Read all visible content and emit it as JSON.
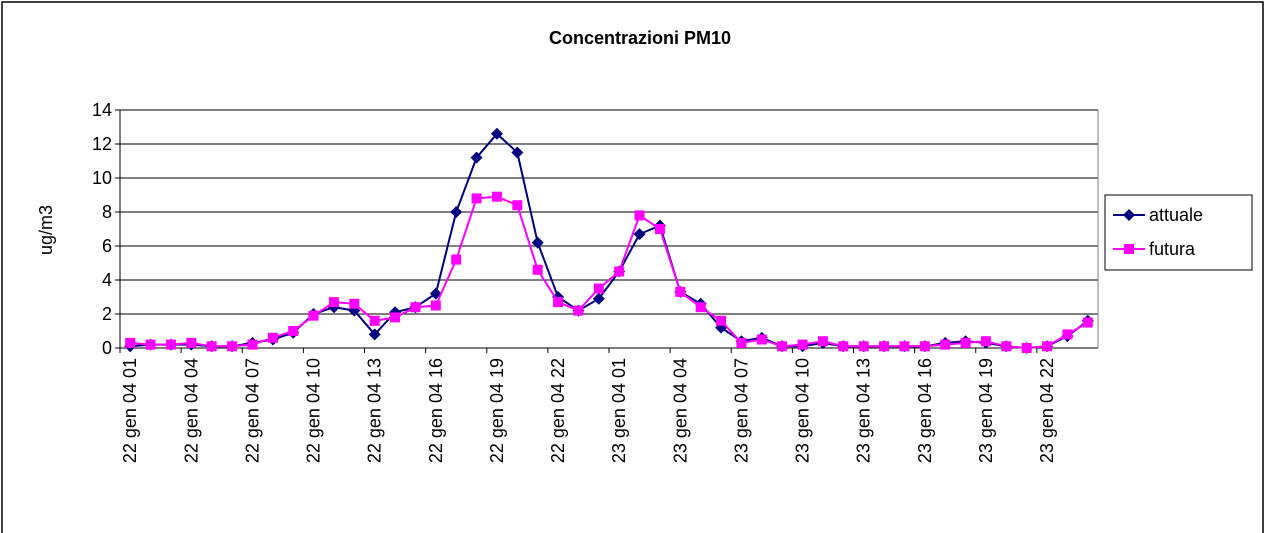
{
  "chart_data": {
    "type": "line",
    "title": "Concentrazioni PM10",
    "y_label": "ug/m3",
    "categories": [
      "22 gen 04 01",
      null,
      null,
      "22 gen 04 04",
      null,
      null,
      "22 gen 04 07",
      null,
      null,
      "22 gen 04 10",
      null,
      null,
      "22 gen 04 13",
      null,
      null,
      "22 gen 04 16",
      null,
      null,
      "22 gen 04 19",
      null,
      null,
      "22 gen 04 22",
      null,
      null,
      "23 gen 04 01",
      null,
      null,
      "23 gen 04 04",
      null,
      null,
      "23 gen 04 07",
      null,
      null,
      "23 gen 04 10",
      null,
      null,
      "23 gen 04 13",
      null,
      null,
      "23 gen 04 16",
      null,
      null,
      "23 gen 04 19",
      null,
      null,
      "23 gen 04 22",
      null,
      null
    ],
    "series": [
      {
        "name": "attuale",
        "color": "#000080",
        "marker": "diamond",
        "values": [
          0.1,
          0.2,
          0.2,
          0.2,
          0.1,
          0.1,
          0.3,
          0.5,
          0.9,
          2.0,
          2.4,
          2.2,
          0.8,
          2.1,
          2.4,
          3.2,
          8.0,
          11.2,
          12.6,
          11.5,
          6.2,
          3.0,
          2.2,
          2.9,
          4.5,
          6.7,
          7.2,
          3.3,
          2.6,
          1.2,
          0.4,
          0.6,
          0.1,
          0.1,
          0.3,
          0.1,
          0.1,
          0.1,
          0.1,
          0.1,
          0.3,
          0.4,
          0.3,
          0.1,
          0.0,
          0.1,
          0.7,
          1.6
        ]
      },
      {
        "name": "futura",
        "color": "#ff00ff",
        "marker": "square",
        "values": [
          0.3,
          0.2,
          0.2,
          0.3,
          0.1,
          0.1,
          0.2,
          0.6,
          1.0,
          1.9,
          2.7,
          2.6,
          1.6,
          1.8,
          2.4,
          2.5,
          5.2,
          8.8,
          8.9,
          8.4,
          4.6,
          2.7,
          2.2,
          3.5,
          4.5,
          7.8,
          7.0,
          3.3,
          2.4,
          1.6,
          0.3,
          0.5,
          0.1,
          0.2,
          0.4,
          0.1,
          0.1,
          0.1,
          0.1,
          0.1,
          0.2,
          0.3,
          0.4,
          0.1,
          0.0,
          0.1,
          0.8,
          1.5
        ]
      }
    ],
    "ylim": [
      0,
      14
    ],
    "yticks": [
      0,
      2,
      4,
      6,
      8,
      10,
      12,
      14
    ],
    "grid": true,
    "legend": "right"
  }
}
